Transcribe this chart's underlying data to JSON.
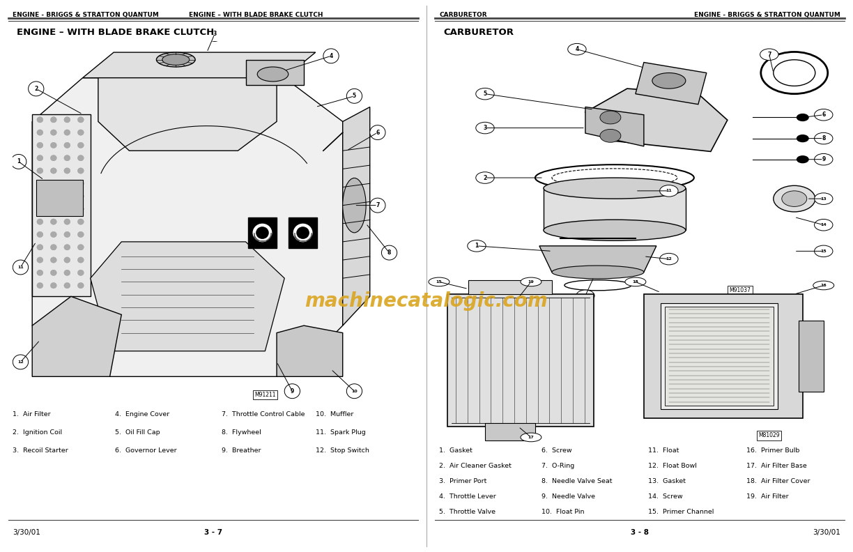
{
  "bg_color": "#ffffff",
  "page_color": "#ffffff",
  "header_left_page_left": "ENGINE - BRIGGS & STRATTON QUANTUM",
  "header_left_page_right": "ENGINE – WITH BLADE BRAKE CLUTCH",
  "header_right_page_left": "CARBURETOR",
  "header_right_page_right": "ENGINE - BRIGGS & STRATTON QUANTUM",
  "left_section_title": "ENGINE – WITH BLADE BRAKE CLUTCH",
  "right_section_title": "CARBURETOR",
  "left_parts_col1": [
    "1.  Air Filter",
    "2.  Ignition Coil",
    "3.  Recoil Starter"
  ],
  "left_parts_col2": [
    "4.  Engine Cover",
    "5.  Oil Fill Cap",
    "6.  Governor Lever"
  ],
  "left_parts_col3": [
    "7.  Throttle Control Cable",
    "8.  Flywheel",
    "9.  Breather"
  ],
  "left_parts_col4": [
    "10.  Muffler",
    "11.  Spark Plug",
    "12.  Stop Switch"
  ],
  "left_fig_code": "M91211",
  "right_fig_code_top": "M91037",
  "right_fig_code_bot": "M81029",
  "right_parts_col1": [
    "1.  Gasket",
    "2.  Air Cleaner Gasket",
    "3.  Primer Port",
    "4.  Throttle Lever",
    "5.  Throttle Valve"
  ],
  "right_parts_col2": [
    "6.  Screw",
    "7.  O-Ring",
    "8.  Needle Valve Seat",
    "9.  Needle Valve",
    "10.  Float Pin"
  ],
  "right_parts_col3": [
    "11.  Float",
    "12.  Float Bowl",
    "13.  Gasket",
    "14.  Screw",
    "15.  Primer Channel"
  ],
  "right_parts_col4": [
    "16.  Primer Bulb",
    "17.  Air Filter Base",
    "18.  Air Filter Cover",
    "19.  Air Filter"
  ],
  "footer_left_date": "3/30/01",
  "footer_left_page": "3 - 7",
  "footer_right_page": "3 - 8",
  "footer_right_date": "3/30/01",
  "watermark": "machinecatalogic.com",
  "watermark_color": "#DAA520",
  "divider_color": "#444444",
  "header_font_size": 6.5,
  "section_title_font_size": 9.5,
  "parts_font_size": 6.8,
  "footer_font_size": 7.5,
  "diagram_bg": "#ffffff"
}
